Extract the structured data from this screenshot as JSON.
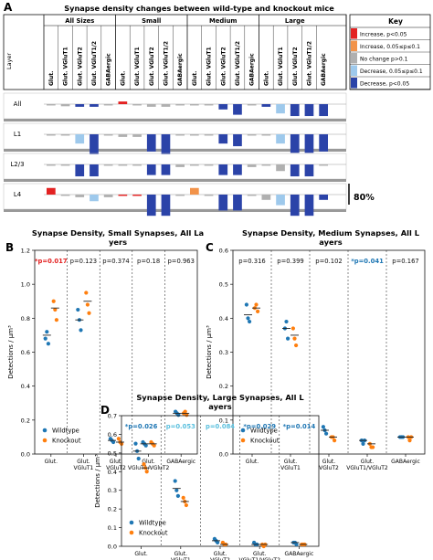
{
  "figure": {
    "panel_labels": [
      "A",
      "B",
      "C",
      "D"
    ]
  },
  "chart_data": [
    {
      "panel": "A",
      "type": "bar",
      "title": "Synapse density changes between wild-type and knockout mice",
      "corner_label": "Layer",
      "size_groups": [
        "All Sizes",
        "Small",
        "Medium",
        "Large"
      ],
      "subtypes": [
        "Glut.",
        "Glut. VGluT1",
        "Glut. VGluT2",
        "Glut. VGluT1/2",
        "GABAergic"
      ],
      "layers": [
        "All",
        "L1",
        "L2/3",
        "L4"
      ],
      "scale_label": "80%",
      "key": {
        "title": "Key",
        "items": [
          {
            "label": "Increase, p<0.05",
            "color": "#e32222"
          },
          {
            "label": "Increase, 0.05≤p≤0.1",
            "color": "#f2934a"
          },
          {
            "label": "No change p>0.1",
            "color": "#b0b0b0"
          },
          {
            "label": "Decrease, 0.05≤p≤0.1",
            "color": "#9ec9ec"
          },
          {
            "label": "Decrease, p<0.05",
            "color": "#2b43a8"
          }
        ]
      },
      "values_percent": {
        "All": [
          [
            -5,
            -8,
            -10,
            -10,
            -5
          ],
          [
            10,
            -5,
            -10,
            -10,
            -5
          ],
          [
            -5,
            -5,
            -20,
            -40,
            -5
          ],
          [
            -10,
            -35,
            -45,
            -45,
            -45
          ]
        ],
        "L1": [
          [
            -5,
            -5,
            -35,
            -75,
            -5
          ],
          [
            -10,
            -10,
            -65,
            -75,
            -5
          ],
          [
            -5,
            -5,
            -35,
            -45,
            -5
          ],
          [
            -5,
            -35,
            -70,
            -70,
            -65
          ]
        ],
        "L2/3": [
          [
            -5,
            -5,
            -45,
            -45,
            -5
          ],
          [
            -5,
            -5,
            -40,
            -40,
            -10
          ],
          [
            -5,
            -5,
            -40,
            -40,
            -10
          ],
          [
            -5,
            -25,
            -45,
            -45,
            -5
          ]
        ],
        "L4": [
          [
            25,
            -5,
            -10,
            -25,
            -10
          ],
          [
            -5,
            -5,
            -80,
            -80,
            -5
          ],
          [
            25,
            -5,
            -60,
            -60,
            -5
          ],
          [
            -20,
            -40,
            -80,
            -80,
            -20
          ]
        ]
      },
      "significance": {
        "All": [
          [
            2,
            2,
            4,
            4,
            2
          ],
          [
            0,
            2,
            2,
            2,
            2
          ],
          [
            2,
            2,
            4,
            4,
            2
          ],
          [
            4,
            3,
            4,
            4,
            4
          ]
        ],
        "L1": [
          [
            2,
            2,
            3,
            4,
            2
          ],
          [
            2,
            2,
            4,
            4,
            2
          ],
          [
            2,
            2,
            4,
            4,
            2
          ],
          [
            2,
            3,
            4,
            4,
            4
          ]
        ],
        "L2/3": [
          [
            2,
            2,
            4,
            4,
            2
          ],
          [
            2,
            2,
            4,
            4,
            2
          ],
          [
            2,
            2,
            4,
            4,
            2
          ],
          [
            2,
            2,
            4,
            4,
            2
          ]
        ],
        "L4": [
          [
            0,
            2,
            2,
            3,
            2
          ],
          [
            0,
            0,
            4,
            4,
            2
          ],
          [
            1,
            2,
            4,
            4,
            2
          ],
          [
            2,
            3,
            4,
            4,
            4
          ]
        ]
      }
    },
    {
      "panel": "B",
      "type": "scatter",
      "title": "Synapse Density, Small Synapses, All Layers",
      "ylabel": "Detections / μm³",
      "ylim": [
        0,
        1.2
      ],
      "yticks": [
        0.0,
        0.2,
        0.4,
        0.6,
        0.8,
        1.0,
        1.2
      ],
      "categories": [
        "Glut.",
        "Glut. VGluT1",
        "Glut. VGluT2",
        "Glut. VGluT1/VGluT2",
        "GABAergic"
      ],
      "pvalues": [
        "*p=0.017",
        "p=0.123",
        "p=0.374",
        "p=0.18",
        "p=0.963"
      ],
      "pvalue_colors": [
        "#e32222",
        "#111111",
        "#111111",
        "#111111",
        "#111111"
      ],
      "legend": [
        "Wildtype",
        "Knockout"
      ],
      "series": [
        {
          "name": "Wildtype",
          "color": "#1f77b4",
          "points": [
            [
              0.68,
              0.72,
              0.65
            ],
            [
              0.85,
              0.79,
              0.73
            ],
            [
              0.09,
              0.08,
              0.07
            ],
            [
              0.07,
              0.06,
              0.05
            ],
            [
              0.25,
              0.24,
              0.23
            ]
          ],
          "means": [
            0.7,
            0.79,
            0.08,
            0.06,
            0.24
          ]
        },
        {
          "name": "Knockout",
          "color": "#ff7f0e",
          "points": [
            [
              0.9,
              0.85,
              0.79
            ],
            [
              0.95,
              0.88,
              0.83
            ],
            [
              0.09,
              0.07,
              0.06
            ],
            [
              0.07,
              0.06,
              0.05
            ],
            [
              0.24,
              0.25,
              0.23
            ]
          ],
          "means": [
            0.86,
            0.9,
            0.07,
            0.06,
            0.24
          ]
        }
      ]
    },
    {
      "panel": "C",
      "type": "scatter",
      "title": "Synapse Density, Medium Synapses, All Layers",
      "ylabel": "Detections / μm³",
      "ylim": [
        0,
        0.6
      ],
      "yticks": [
        0.0,
        0.1,
        0.2,
        0.3,
        0.4,
        0.5,
        0.6
      ],
      "categories": [
        "Glut.",
        "Glut. VGluT1",
        "Glut. VGluT2",
        "Glut. VGluT1/VGluT2",
        "GABAergic"
      ],
      "pvalues": [
        "p=0.316",
        "p=0.399",
        "p=0.102",
        "*p=0.041",
        "p=0.167"
      ],
      "pvalue_colors": [
        "#111111",
        "#111111",
        "#111111",
        "#1f77b4",
        "#111111"
      ],
      "legend": [
        "Wildtype",
        "Knockout"
      ],
      "series": [
        {
          "name": "Wildtype",
          "color": "#1f77b4",
          "points": [
            [
              0.44,
              0.4,
              0.39
            ],
            [
              0.37,
              0.39,
              0.34
            ],
            [
              0.08,
              0.07,
              0.06
            ],
            [
              0.04,
              0.03,
              0.04
            ],
            [
              0.05,
              0.05,
              0.05
            ]
          ],
          "means": [
            0.41,
            0.37,
            0.07,
            0.04,
            0.05
          ]
        },
        {
          "name": "Knockout",
          "color": "#ff7f0e",
          "points": [
            [
              0.43,
              0.44,
              0.42
            ],
            [
              0.37,
              0.34,
              0.32
            ],
            [
              0.05,
              0.05,
              0.04
            ],
            [
              0.03,
              0.02,
              0.02
            ],
            [
              0.05,
              0.04,
              0.05
            ]
          ],
          "means": [
            0.43,
            0.35,
            0.05,
            0.03,
            0.05
          ]
        }
      ]
    },
    {
      "panel": "D",
      "type": "scatter",
      "title": "Synapse Density, Large Synapses, All Layers",
      "ylabel": "Detections / μm³",
      "ylim": [
        0,
        0.7
      ],
      "yticks": [
        0.0,
        0.1,
        0.2,
        0.3,
        0.4,
        0.5,
        0.6,
        0.7
      ],
      "categories": [
        "Glut.",
        "Glut. VGluT1",
        "Glut. VGluT2",
        "Glut. VGluT1/VGluT2",
        "GABAergic"
      ],
      "pvalues": [
        "*p=0.026",
        "p=0.053",
        "p=0.084",
        "*p=0.029",
        "*p=0.014"
      ],
      "pvalue_colors": [
        "#1f77b4",
        "#5bc0de",
        "#5bc0de",
        "#1f77b4",
        "#1f77b4"
      ],
      "legend": [
        "Wildtype",
        "Knockout"
      ],
      "series": [
        {
          "name": "Wildtype",
          "color": "#1f77b4",
          "points": [
            [
              0.55,
              0.51,
              0.47
            ],
            [
              0.35,
              0.3,
              0.27
            ],
            [
              0.04,
              0.03,
              0.02
            ],
            [
              0.02,
              0.01,
              0.01
            ],
            [
              0.02,
              0.02,
              0.01
            ]
          ],
          "means": [
            0.51,
            0.31,
            0.03,
            0.01,
            0.02
          ]
        },
        {
          "name": "Knockout",
          "color": "#ff7f0e",
          "points": [
            [
              0.44,
              0.42,
              0.4
            ],
            [
              0.26,
              0.24,
              0.22
            ],
            [
              0.02,
              0.01,
              0.01
            ],
            [
              0.01,
              0.0,
              0.01
            ],
            [
              0.01,
              0.01,
              0.01
            ]
          ],
          "means": [
            0.42,
            0.24,
            0.01,
            0.01,
            0.01
          ]
        }
      ]
    }
  ]
}
